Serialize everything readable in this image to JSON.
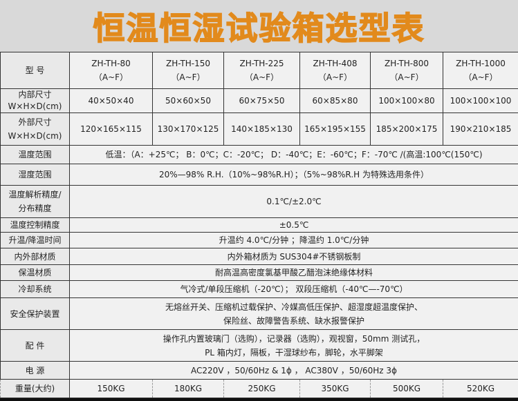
{
  "title": "恒温恒湿试验箱选型表",
  "header": {
    "label": "型 号",
    "models": [
      {
        "name": "ZH-TH-80",
        "variant": "（A~F）"
      },
      {
        "name": "ZH-TH-150",
        "variant": "（A~F）"
      },
      {
        "name": "ZH-TH-225",
        "variant": "（A~F）"
      },
      {
        "name": "ZH-TH-408",
        "variant": "（A~F）"
      },
      {
        "name": "ZH-TH-800",
        "variant": "（A~F）"
      },
      {
        "name": "ZH-TH-1000",
        "variant": "（A~F）"
      }
    ]
  },
  "inner": {
    "label1": "内部尺寸",
    "label2": "W×H×D(cm)",
    "values": [
      "40×50×40",
      "50×60×50",
      "60×75×50",
      "60×85×80",
      "100×100×80",
      "100×100×100"
    ]
  },
  "outer": {
    "label1": "外部尺寸",
    "label2": "W×H×D(cm)",
    "values": [
      "120×165×115",
      "130×170×125",
      "140×185×130",
      "165×195×155",
      "185×200×175",
      "190×210×185"
    ]
  },
  "rows": [
    {
      "label": "温度范围",
      "value": "低温：（A：+25℃； B：0℃；C：-20℃； D：-40℃；E：-60℃；F：-70℃  /(高温:100℃(150℃)"
    },
    {
      "label": "湿度范围",
      "value": "20%—98% R.H.（10%~98%R.H）；（5%~98%R.H 为特殊选用条件）"
    },
    {
      "label": "温度解析精度/分布精度",
      "value": "0.1℃/±2.0℃"
    },
    {
      "label": "温度控制精度",
      "value": "±0.5℃"
    },
    {
      "label": "升温/降温时间",
      "value": "升温约 4.0℃/分钟 ；降温约 1.0℃/分钟"
    },
    {
      "label": "内外部材质",
      "value": "内外箱材质为 SUS304#不锈钢板制"
    },
    {
      "label": "保温材质",
      "value": "耐高温高密度氯基甲酸乙醋泡沫绝缘体材料"
    },
    {
      "label": "冷却系统",
      "value": "气冷式/单段压缩机（-20℃）； 双段压缩机（-40℃—-70℃）"
    },
    {
      "label": "安全保护装置",
      "value": "无熔丝开关、压缩机过载保护、冷媒高低压保护、超湿度超温度保护、",
      "value2": "保险丝、故障警告系统、缺水报警保护"
    },
    {
      "label": "配 件",
      "value": "操作孔内置玻璃门（选购），记录器（选购），观视窗，50mm 测试孔，",
      "value2": "PL 箱内灯，隔板，干湿球纱布，脚轮，水平脚架"
    },
    {
      "label": "电 源",
      "value": "AC220V ，50/60Hz & 1ϕ ， AC380V ，50/60Hz 3ϕ"
    }
  ],
  "weight": {
    "label": "重量(大约)",
    "values": [
      "150KG",
      "180KG",
      "250KG",
      "350KG",
      "500KG",
      "520KG"
    ]
  },
  "colors": {
    "title": "#e28a1c",
    "background": "#d9d9d9"
  }
}
